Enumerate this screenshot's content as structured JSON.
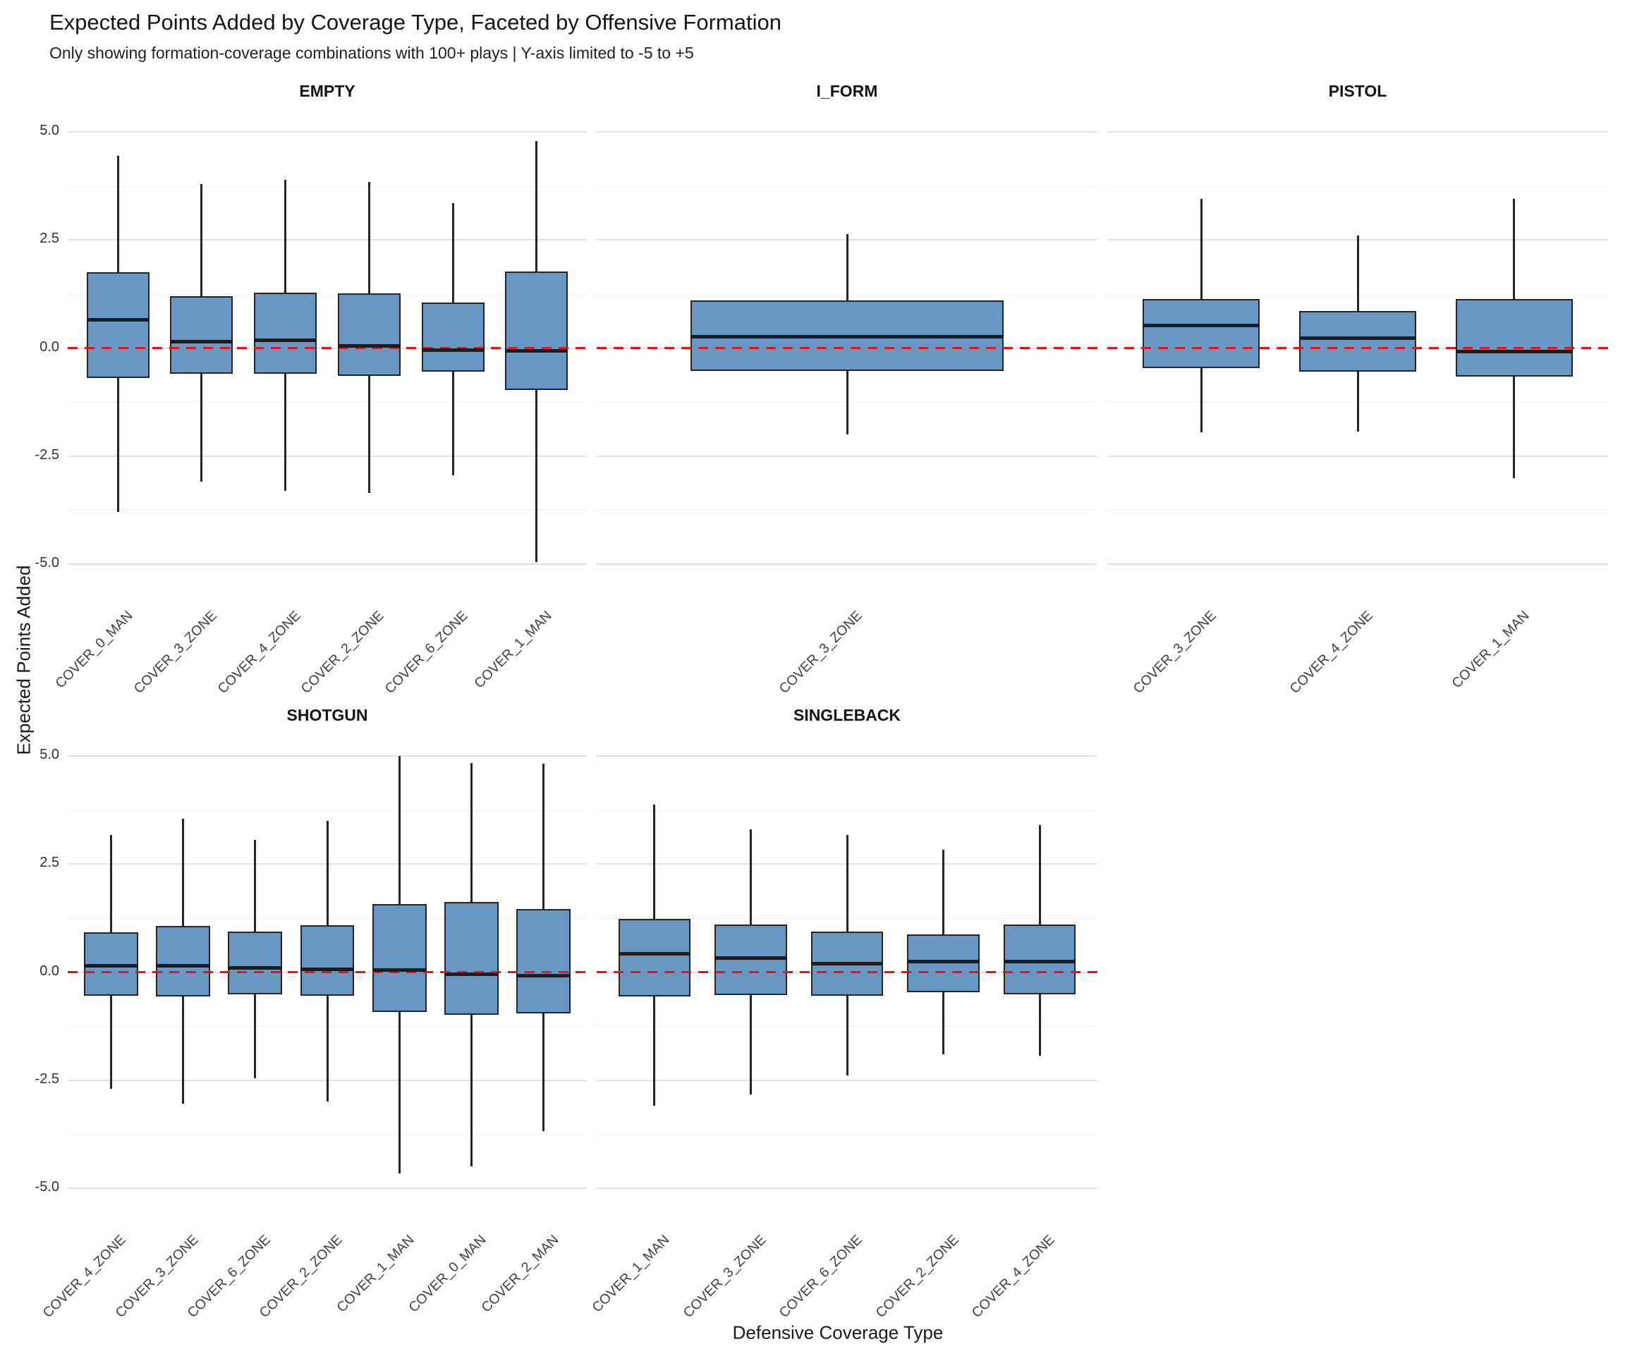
{
  "title": "Expected Points Added by Coverage Type, Faceted by Offensive Formation",
  "subtitle": "Only showing formation-coverage combinations with 100+ plays | Y-axis limited to -5 to +5",
  "axes": {
    "y_label": "Expected Points Added",
    "x_label": "Defensive Coverage Type"
  },
  "colors": {
    "box_fill": "#6897C3",
    "box_border": "#252525",
    "whisker": "#252525",
    "median": "#1c1c1c",
    "zero_line": "#ee1111",
    "grid_major": "#e3e3e3",
    "grid_minor": "#f0f0f0",
    "strip_text": "#141414",
    "tick_text": "#303030"
  },
  "chart_data": {
    "type": "boxplot",
    "facet_by": "Offensive Formation",
    "ylabel": "Expected Points Added",
    "xlabel": "Defensive Coverage Type",
    "ylim": [
      -5,
      5
    ],
    "grid": "major+minor",
    "zero_reference_line": 0,
    "y_ticks": [
      5.0,
      2.5,
      0.0,
      -2.5,
      -5.0
    ],
    "y_tick_labels": [
      "5.0",
      "2.5",
      "0.0",
      "-2.5",
      "-5.0"
    ],
    "y_minor_ticks": [
      3.75,
      1.25,
      -1.25,
      -3.75
    ],
    "facets": [
      {
        "name": "EMPTY",
        "row": 0,
        "col": 0,
        "boxes": [
          {
            "label": "COVER_0_MAN",
            "whisker_low": -3.8,
            "q1": -0.7,
            "median": 0.65,
            "q3": 1.75,
            "whisker_high": 4.45
          },
          {
            "label": "COVER_3_ZONE",
            "whisker_low": -3.1,
            "q1": -0.6,
            "median": 0.15,
            "q3": 1.2,
            "whisker_high": 3.8
          },
          {
            "label": "COVER_4_ZONE",
            "whisker_low": -3.3,
            "q1": -0.6,
            "median": 0.18,
            "q3": 1.28,
            "whisker_high": 3.9
          },
          {
            "label": "COVER_2_ZONE",
            "whisker_low": -3.35,
            "q1": -0.65,
            "median": 0.05,
            "q3": 1.26,
            "whisker_high": 3.85
          },
          {
            "label": "COVER_6_ZONE",
            "whisker_low": -2.95,
            "q1": -0.55,
            "median": -0.05,
            "q3": 1.05,
            "whisker_high": 3.35
          },
          {
            "label": "COVER_1_MAN",
            "whisker_low": -4.95,
            "q1": -0.97,
            "median": -0.06,
            "q3": 1.78,
            "whisker_high": 4.8
          }
        ]
      },
      {
        "name": "I_FORM",
        "row": 0,
        "col": 1,
        "boxes": [
          {
            "label": "COVER_3_ZONE",
            "whisker_low": -2.0,
            "q1": -0.54,
            "median": 0.27,
            "q3": 1.1,
            "whisker_high": 2.64
          }
        ]
      },
      {
        "name": "PISTOL",
        "row": 0,
        "col": 2,
        "boxes": [
          {
            "label": "COVER_3_ZONE",
            "whisker_low": -1.95,
            "q1": -0.47,
            "median": 0.53,
            "q3": 1.13,
            "whisker_high": 3.45
          },
          {
            "label": "COVER_4_ZONE",
            "whisker_low": -1.94,
            "q1": -0.55,
            "median": 0.23,
            "q3": 0.85,
            "whisker_high": 2.6
          },
          {
            "label": "COVER_1_MAN",
            "whisker_low": -3.02,
            "q1": -0.67,
            "median": -0.08,
            "q3": 1.14,
            "whisker_high": 3.45
          }
        ]
      },
      {
        "name": "SHOTGUN",
        "row": 1,
        "col": 0,
        "boxes": [
          {
            "label": "COVER_4_ZONE",
            "whisker_low": -2.7,
            "q1": -0.54,
            "median": 0.15,
            "q3": 0.93,
            "whisker_high": 3.17
          },
          {
            "label": "COVER_3_ZONE",
            "whisker_low": -3.05,
            "q1": -0.57,
            "median": 0.15,
            "q3": 1.07,
            "whisker_high": 3.55
          },
          {
            "label": "COVER_6_ZONE",
            "whisker_low": -2.46,
            "q1": -0.52,
            "median": 0.1,
            "q3": 0.94,
            "whisker_high": 3.07
          },
          {
            "label": "COVER_2_ZONE",
            "whisker_low": -3.0,
            "q1": -0.55,
            "median": 0.06,
            "q3": 1.08,
            "whisker_high": 3.5
          },
          {
            "label": "COVER_1_MAN",
            "whisker_low": -4.67,
            "q1": -0.93,
            "median": 0.05,
            "q3": 1.57,
            "whisker_high": 5.0
          },
          {
            "label": "COVER_0_MAN",
            "whisker_low": -4.5,
            "q1": -0.99,
            "median": -0.05,
            "q3": 1.62,
            "whisker_high": 4.84
          },
          {
            "label": "COVER_2_MAN",
            "whisker_low": -3.68,
            "q1": -0.96,
            "median": -0.08,
            "q3": 1.46,
            "whisker_high": 4.82
          }
        ]
      },
      {
        "name": "SINGLEBACK",
        "row": 1,
        "col": 1,
        "boxes": [
          {
            "label": "COVER_1_MAN",
            "whisker_low": -3.09,
            "q1": -0.56,
            "median": 0.43,
            "q3": 1.24,
            "whisker_high": 3.88
          },
          {
            "label": "COVER_3_ZONE",
            "whisker_low": -2.84,
            "q1": -0.53,
            "median": 0.32,
            "q3": 1.1,
            "whisker_high": 3.3
          },
          {
            "label": "COVER_6_ZONE",
            "whisker_low": -2.39,
            "q1": -0.55,
            "median": 0.2,
            "q3": 0.94,
            "whisker_high": 3.17
          },
          {
            "label": "COVER_2_ZONE",
            "whisker_low": -1.9,
            "q1": -0.46,
            "median": 0.25,
            "q3": 0.88,
            "whisker_high": 2.83
          },
          {
            "label": "COVER_4_ZONE",
            "whisker_low": -1.94,
            "q1": -0.51,
            "median": 0.25,
            "q3": 1.11,
            "whisker_high": 3.41
          }
        ]
      }
    ]
  }
}
